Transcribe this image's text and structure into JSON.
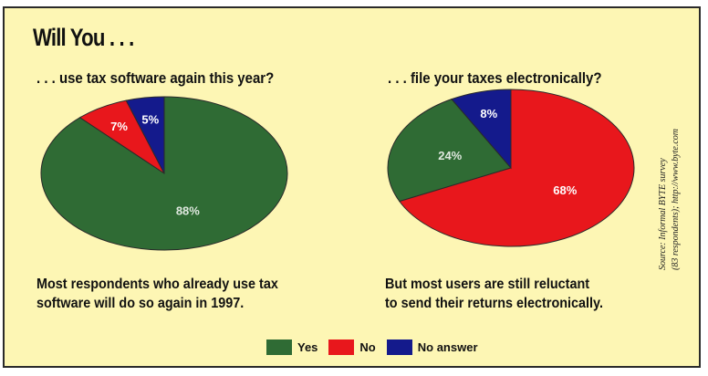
{
  "title": "Will You . . .",
  "source": {
    "line1": "Source: Informal BYTE survey",
    "line2": "(83 respondents); http://www.byte.com"
  },
  "legend": [
    {
      "label": "Yes",
      "color": "#2f6b34"
    },
    {
      "label": "No",
      "color": "#e8171c"
    },
    {
      "label": "No answer",
      "color": "#141a8c"
    }
  ],
  "chart_data": [
    {
      "type": "pie",
      "title": ". . . use tax software again this year?",
      "caption": [
        "Most respondents who already use tax",
        "software will do so again in 1997."
      ],
      "slices": [
        {
          "label": "Yes",
          "value": 88,
          "display": "88%"
        },
        {
          "label": "No",
          "value": 7,
          "display": "7%"
        },
        {
          "label": "No answer",
          "value": 5,
          "display": "5%"
        }
      ]
    },
    {
      "type": "pie",
      "title": ". . . file your taxes electronically?",
      "caption": [
        "But most users are still reluctant",
        "to send their returns electronically."
      ],
      "slices": [
        {
          "label": "Yes",
          "value": 24,
          "display": "24%"
        },
        {
          "label": "No",
          "value": 68,
          "display": "68%"
        },
        {
          "label": "No answer",
          "value": 8,
          "display": "8%"
        }
      ]
    }
  ]
}
